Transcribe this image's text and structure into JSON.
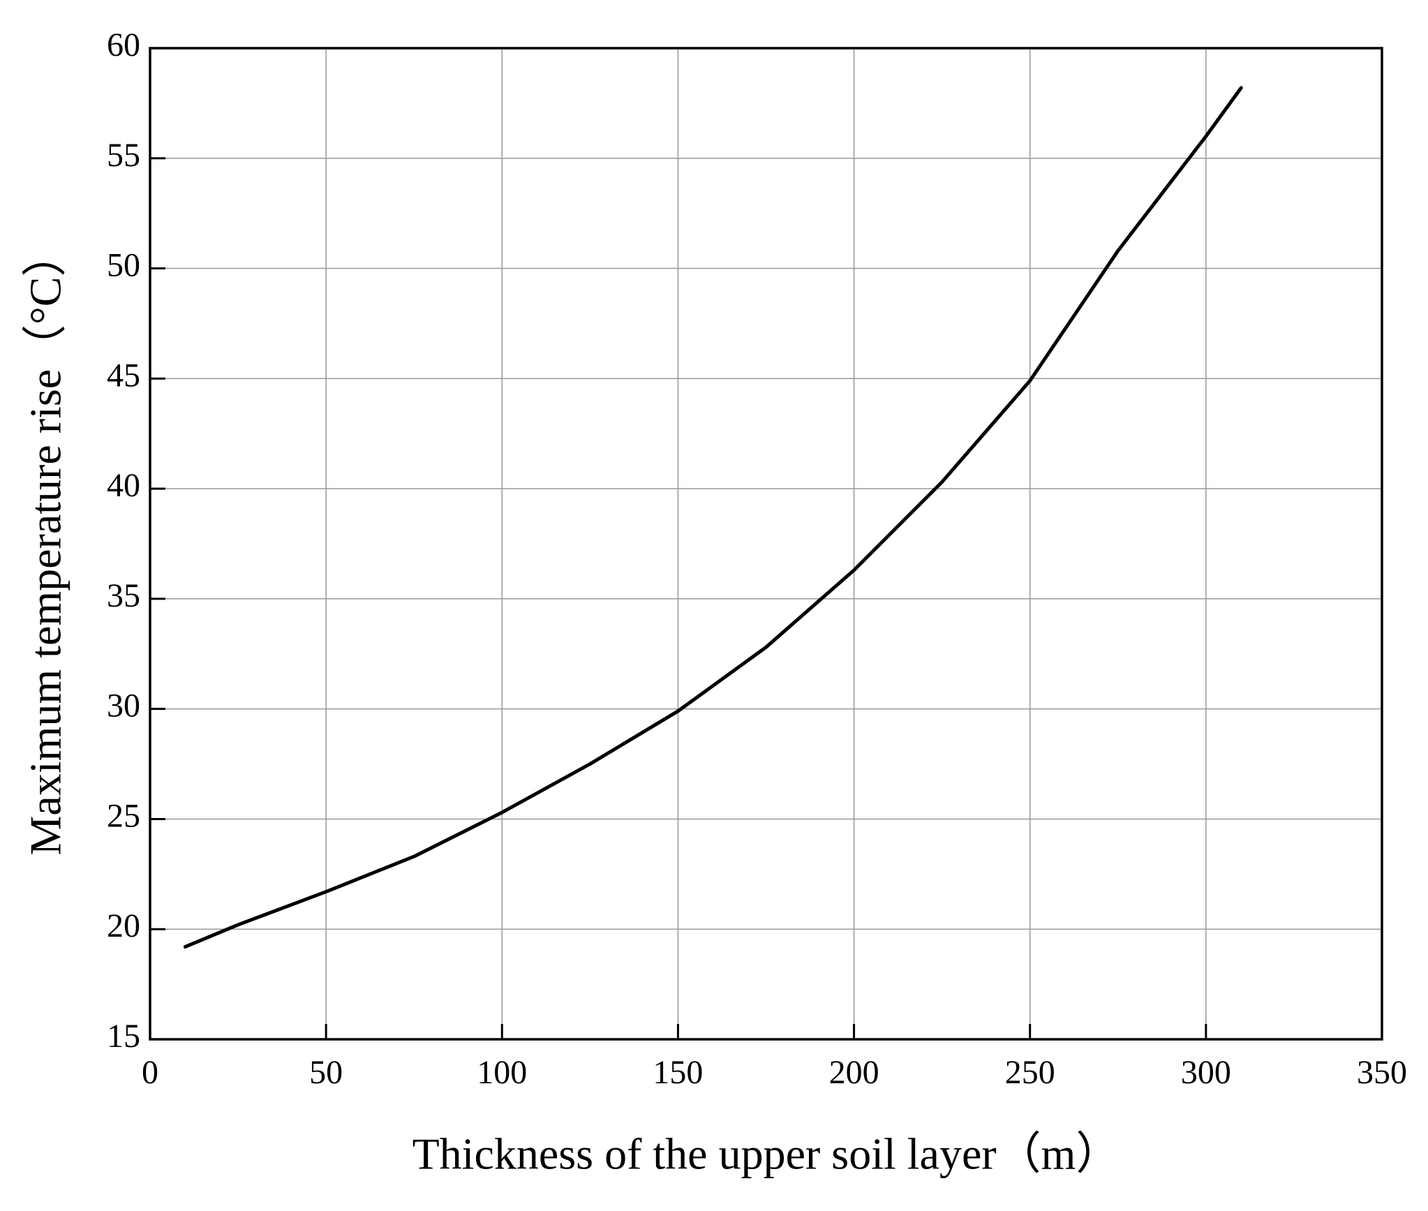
{
  "chart_data": {
    "type": "line",
    "x_label": "Thickness of the upper soil layer（m）",
    "y_label": "Maximum temperature rise（°C）",
    "x": [
      10,
      25,
      50,
      75,
      100,
      125,
      150,
      175,
      200,
      225,
      250,
      275,
      300,
      310
    ],
    "series": [
      {
        "color": "#000000",
        "values": [
          19.2,
          20.2,
          21.7,
          23.3,
          25.3,
          27.5,
          29.9,
          32.8,
          36.3,
          40.3,
          44.9,
          50.8,
          56.0,
          58.2
        ]
      }
    ],
    "xlim": [
      0,
      350
    ],
    "xticks": [
      0,
      50,
      100,
      150,
      200,
      250,
      300,
      350
    ],
    "ylim": [
      15,
      60
    ],
    "yticks": [
      15,
      20,
      25,
      30,
      35,
      40,
      45,
      50,
      55,
      60
    ],
    "grid": true
  }
}
